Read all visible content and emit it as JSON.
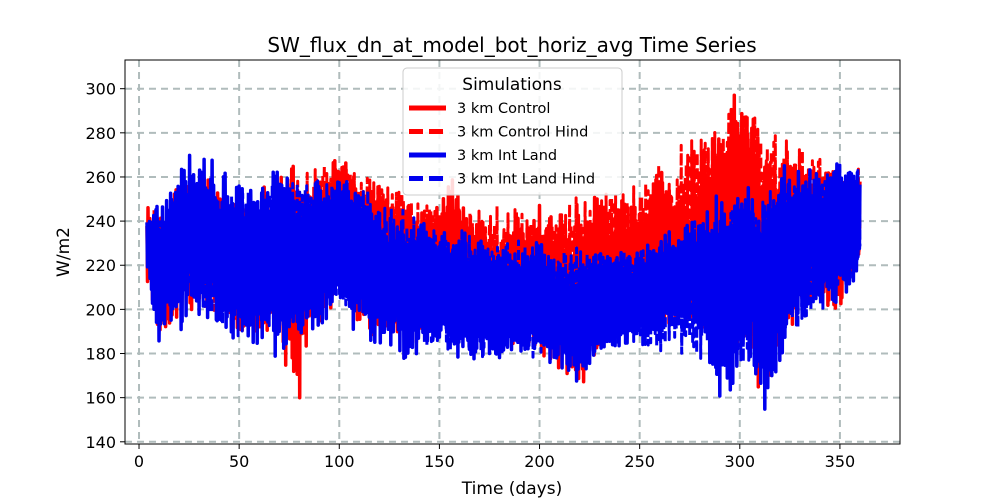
{
  "chart_data": {
    "type": "line",
    "title": "SW_flux_dn_at_model_bot_horiz_avg Time Series",
    "xlabel": "Time (days)",
    "ylabel": "W/m2",
    "xlim": [
      -7,
      380
    ],
    "ylim": [
      139,
      313
    ],
    "xticks": [
      0,
      50,
      100,
      150,
      200,
      250,
      300,
      350
    ],
    "yticks": [
      140,
      160,
      180,
      200,
      220,
      240,
      260,
      280,
      300
    ],
    "grid": true,
    "legend": {
      "title": "Simulations",
      "position": "upper-center"
    },
    "series": [
      {
        "name": "3 km Control",
        "color": "#ff0000",
        "style": "solid",
        "envelope": {
          "x": [
            4,
            10,
            20,
            30,
            40,
            50,
            60,
            70,
            75,
            80,
            85,
            90,
            95,
            100,
            110,
            120,
            130,
            140,
            150,
            155,
            160,
            170,
            180,
            190,
            200,
            210,
            220,
            225,
            230,
            240,
            250,
            260,
            270,
            280,
            290,
            295,
            300,
            305,
            310,
            315,
            320,
            330,
            340,
            350,
            360
          ],
          "upper": [
            250,
            238,
            260,
            262,
            258,
            250,
            255,
            262,
            275,
            262,
            255,
            262,
            265,
            276,
            262,
            255,
            250,
            248,
            252,
            262,
            256,
            240,
            232,
            245,
            252,
            236,
            232,
            248,
            256,
            232,
            246,
            266,
            248,
            258,
            282,
            296,
            305,
            292,
            280,
            270,
            268,
            270,
            272,
            260,
            270
          ],
          "lower": [
            212,
            180,
            198,
            200,
            196,
            186,
            186,
            176,
            174,
            156,
            182,
            190,
            198,
            210,
            190,
            186,
            184,
            182,
            196,
            200,
            196,
            184,
            180,
            184,
            180,
            172,
            160,
            168,
            182,
            190,
            188,
            200,
            196,
            190,
            166,
            172,
            188,
            176,
            158,
            150,
            184,
            198,
            202,
            200,
            216
          ]
        }
      },
      {
        "name": "3 km Control Hind",
        "color": "#ff0000",
        "style": "dashed",
        "envelope": {
          "x": [
            4,
            50,
            100,
            150,
            200,
            250,
            300,
            350,
            360
          ],
          "upper": [
            246,
            248,
            270,
            248,
            248,
            258,
            298,
            262,
            266
          ],
          "lower": [
            214,
            190,
            212,
            198,
            184,
            192,
            190,
            204,
            218
          ]
        }
      },
      {
        "name": "3 km Int Land",
        "color": "#0000ee",
        "style": "solid",
        "envelope": {
          "x": [
            4,
            10,
            20,
            30,
            40,
            50,
            60,
            70,
            75,
            80,
            85,
            90,
            95,
            100,
            110,
            120,
            130,
            140,
            150,
            160,
            170,
            180,
            190,
            200,
            210,
            220,
            225,
            230,
            240,
            250,
            260,
            270,
            280,
            290,
            295,
            300,
            305,
            310,
            315,
            320,
            330,
            340,
            350,
            360
          ],
          "upper": [
            244,
            250,
            266,
            274,
            266,
            258,
            258,
            274,
            268,
            248,
            258,
            262,
            255,
            266,
            258,
            248,
            242,
            246,
            238,
            236,
            234,
            226,
            230,
            234,
            222,
            218,
            226,
            228,
            226,
            228,
            236,
            238,
            244,
            258,
            252,
            256,
            262,
            248,
            256,
            266,
            270,
            264,
            270,
            268
          ],
          "lower": [
            214,
            178,
            190,
            196,
            192,
            184,
            182,
            176,
            186,
            178,
            186,
            190,
            192,
            196,
            186,
            178,
            174,
            172,
            178,
            178,
            176,
            172,
            176,
            176,
            170,
            166,
            170,
            176,
            182,
            184,
            190,
            196,
            190,
            158,
            160,
            172,
            168,
            160,
            148,
            176,
            196,
            198,
            200,
            214
          ]
        }
      },
      {
        "name": "3 km Int Land Hind",
        "color": "#0000ee",
        "style": "dashed",
        "envelope": {
          "x": [
            4,
            50,
            100,
            150,
            200,
            250,
            300,
            350,
            360
          ],
          "upper": [
            242,
            256,
            262,
            238,
            232,
            226,
            252,
            266,
            266
          ],
          "lower": [
            216,
            186,
            198,
            180,
            176,
            182,
            172,
            202,
            216
          ]
        }
      }
    ]
  }
}
